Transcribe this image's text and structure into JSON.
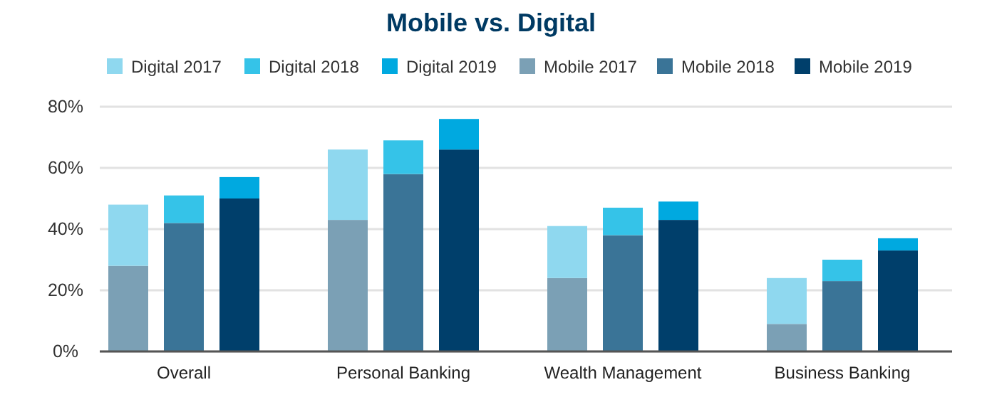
{
  "chart_data": {
    "type": "bar",
    "title": "Mobile vs. Digital",
    "stacked": true,
    "categories": [
      null,
      "Overall",
      null,
      null,
      "Personal Banking",
      null,
      null,
      "Wealth Management",
      null,
      null,
      "Business Banking",
      null
    ],
    "series": [
      {
        "name": "Mobile 2017",
        "color": "#7ba0b5",
        "values": [
          28,
          null,
          null,
          43,
          null,
          null,
          24,
          null,
          null,
          9,
          null,
          null
        ]
      },
      {
        "name": "Digital 2017",
        "color": "#8fd8ef",
        "values": [
          20,
          null,
          null,
          23,
          null,
          null,
          17,
          null,
          null,
          15,
          null,
          null
        ]
      },
      {
        "name": "Mobile 2018",
        "color": "#3a7497",
        "values": [
          null,
          42,
          null,
          null,
          58,
          null,
          null,
          38,
          null,
          null,
          23,
          null
        ]
      },
      {
        "name": "Digital 2018",
        "color": "#35c3e8",
        "values": [
          null,
          9,
          null,
          null,
          11,
          null,
          null,
          9,
          null,
          null,
          7,
          null
        ]
      },
      {
        "name": "Mobile 2019",
        "color": "#003f6b",
        "values": [
          null,
          null,
          50,
          null,
          null,
          66,
          null,
          null,
          43,
          null,
          null,
          33
        ]
      },
      {
        "name": "Digital 2019",
        "color": "#00a9e0",
        "values": [
          null,
          null,
          7,
          null,
          null,
          10,
          null,
          null,
          6,
          null,
          null,
          4
        ]
      }
    ],
    "ylim": [
      0,
      80
    ],
    "yticks": [
      {
        "value": 0,
        "label": "0%"
      },
      {
        "value": 20,
        "label": "20%"
      },
      {
        "value": 40,
        "label": "40%"
      },
      {
        "value": 60,
        "label": "60%"
      },
      {
        "value": 80,
        "label": "80%"
      }
    ],
    "grid": "y",
    "legend": "top"
  }
}
